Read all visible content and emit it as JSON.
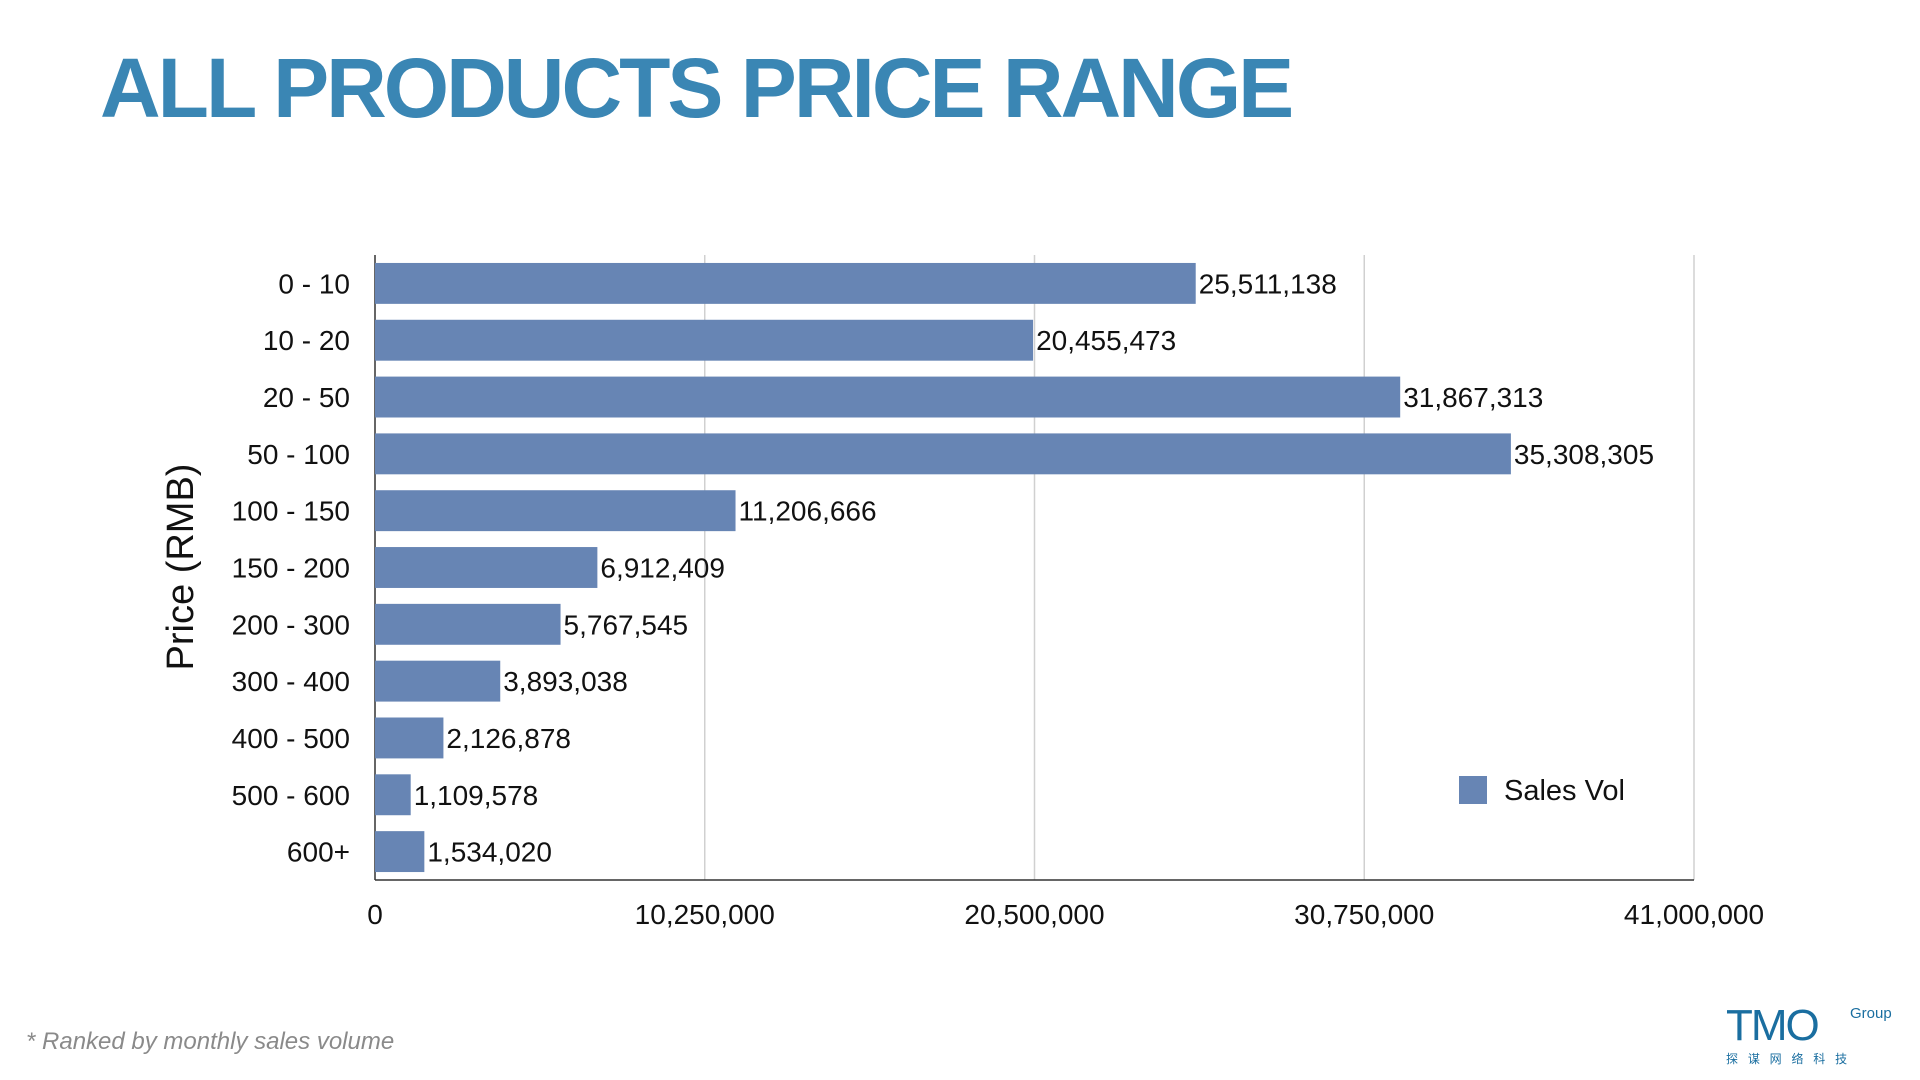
{
  "title": "ALL PRODUCTS PRICE RANGE",
  "footnote": "* Ranked by monthly sales volume",
  "logo": {
    "text": "TMO",
    "suffix": "Group",
    "tagline": "探 谋 网 络 科 技"
  },
  "colors": {
    "title": "#3a86b4",
    "bar": "#6785b4",
    "grid": "#d0d0d0",
    "logo": "#1a6ea0"
  },
  "chart_data": {
    "type": "bar",
    "orientation": "horizontal",
    "categories": [
      "0 - 10",
      "10 - 20",
      "20 - 50",
      "50 - 100",
      "100 - 150",
      "150 - 200",
      "200 - 300",
      "300 - 400",
      "400 - 500",
      "500 - 600",
      "600+"
    ],
    "series": [
      {
        "name": "Sales Vol",
        "values": [
          25511138,
          20455473,
          31867313,
          35308305,
          11206666,
          6912409,
          5767545,
          3893038,
          2126878,
          1109578,
          1534020
        ]
      }
    ],
    "data_labels": [
      "25,511,138",
      "20,455,473",
      "31,867,313",
      "35,308,305",
      "11,206,666",
      "6,912,409",
      "5,767,545",
      "3,893,038",
      "2,126,878",
      "1,109,578",
      "1,534,020"
    ],
    "xlim": [
      0,
      41000000
    ],
    "xticks": [
      0,
      10250000,
      20500000,
      30750000,
      41000000
    ],
    "xtick_labels": [
      "0",
      "10,250,000",
      "20,500,000",
      "30,750,000",
      "41,000,000"
    ],
    "ylabel": "Price (RMB)",
    "xlabel": "",
    "grid": "vertical",
    "legend": "bottom-right"
  }
}
